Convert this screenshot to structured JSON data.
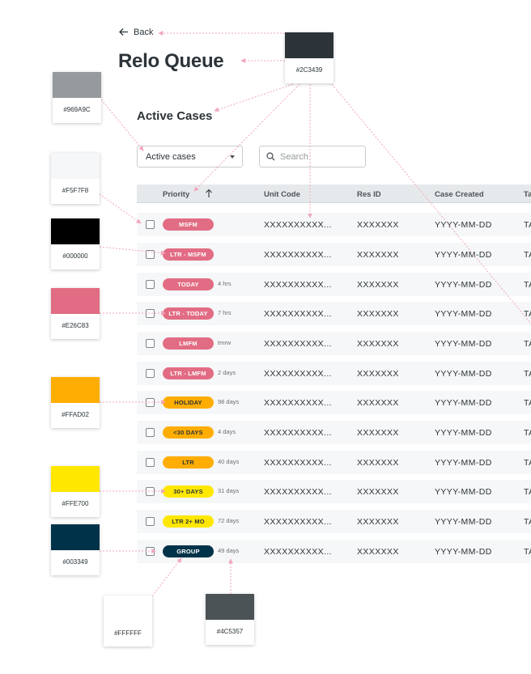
{
  "header": {
    "back_label": "Back",
    "title": "Relo Queue",
    "section_title": "Active Cases"
  },
  "filters": {
    "status_value": "Active cases",
    "search_placeholder": "Search"
  },
  "table": {
    "columns": [
      "Priority",
      "Unit Code",
      "Res ID",
      "Case Created",
      "Ta"
    ],
    "rows": [
      {
        "priority": "MSFM",
        "age": "",
        "unit_code": "XXXXXXXXXX...",
        "res_id": "XXXXXXX",
        "created": "YYYY-MM-DD",
        "extra": "TA"
      },
      {
        "priority": "LTR - MSFM",
        "age": "",
        "unit_code": "XXXXXXXXXX...",
        "res_id": "XXXXXXX",
        "created": "YYYY-MM-DD",
        "extra": "TA"
      },
      {
        "priority": "TODAY",
        "age": "4 hrs",
        "unit_code": "XXXXXXXXXX...",
        "res_id": "XXXXXXX",
        "created": "YYYY-MM-DD",
        "extra": "TA"
      },
      {
        "priority": "LTR - TODAY",
        "age": "7 hrs",
        "unit_code": "XXXXXXXXXX...",
        "res_id": "XXXXXXX",
        "created": "YYYY-MM-DD",
        "extra": "TA"
      },
      {
        "priority": "LMFM",
        "age": "tmrw",
        "unit_code": "XXXXXXXXXX...",
        "res_id": "XXXXXXX",
        "created": "YYYY-MM-DD",
        "extra": "TA"
      },
      {
        "priority": "LTR - LMFM",
        "age": "2 days",
        "unit_code": "XXXXXXXXXX...",
        "res_id": "XXXXXXX",
        "created": "YYYY-MM-DD",
        "extra": "TA"
      },
      {
        "priority": "HOLIDAY",
        "age": "98 days",
        "unit_code": "XXXXXXXXXX...",
        "res_id": "XXXXXXX",
        "created": "YYYY-MM-DD",
        "extra": "TA"
      },
      {
        "priority": "<30 DAYS",
        "age": "4 days",
        "unit_code": "XXXXXXXXXX...",
        "res_id": "XXXXXXX",
        "created": "YYYY-MM-DD",
        "extra": "TA"
      },
      {
        "priority": "LTR",
        "age": "40 days",
        "unit_code": "XXXXXXXXXX...",
        "res_id": "XXXXXXX",
        "created": "YYYY-MM-DD",
        "extra": "TA"
      },
      {
        "priority": "30+ DAYS",
        "age": "31 days",
        "unit_code": "XXXXXXXXXX...",
        "res_id": "XXXXXXX",
        "created": "YYYY-MM-DD",
        "extra": "TA"
      },
      {
        "priority": "LTR 2+ MO",
        "age": "72 days",
        "unit_code": "XXXXXXXXXX...",
        "res_id": "XXXXXXX",
        "created": "YYYY-MM-DD",
        "extra": "TA"
      },
      {
        "priority": "GROUP",
        "age": "49 days",
        "unit_code": "XXXXXXXXXX...",
        "res_id": "XXXXXXX",
        "created": "YYYY-MM-DD",
        "extra": "TA"
      }
    ]
  },
  "swatches": [
    {
      "code": "#2C3439"
    },
    {
      "code": "#969A9C"
    },
    {
      "code": "#F5F7F8"
    },
    {
      "code": "#000000"
    },
    {
      "code": "#E26C83"
    },
    {
      "code": "#FFAD02"
    },
    {
      "code": "#FFE700"
    },
    {
      "code": "#003349"
    },
    {
      "code": "#FFFFFF"
    },
    {
      "code": "#4C5357"
    }
  ],
  "colors": {
    "text_primary": "#2C3439",
    "text_muted": "#969A9C",
    "row_bg": "#F5F7F8",
    "pink": "#E26C83",
    "orange": "#FFAD02",
    "yellow": "#FFE700",
    "navy": "#003349",
    "white": "#FFFFFF",
    "gray_dark": "#4C5357",
    "annotation_line": "#F2A7BC"
  },
  "icons": {
    "back": "arrow-left-icon",
    "dropdown": "caret-down-icon",
    "search": "magnifier-icon",
    "sort": "arrow-up-icon"
  }
}
